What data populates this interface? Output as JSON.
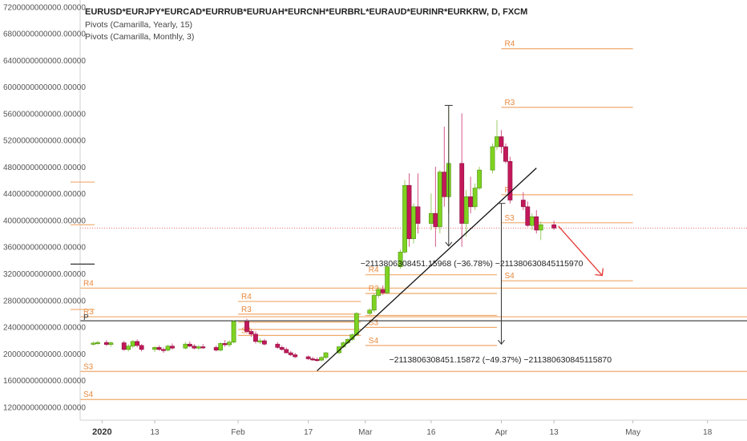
{
  "header": {
    "symbol": "EURUSD*EURJPY*EURCAD*EURRUB*EURUAH*EURCNH*EURBRL*EURAUD*EURINR*EURKRW, D, FXCM",
    "indicators": [
      "Pivots (Camarilla, Yearly, 15)",
      "Pivots (Camarilla, Monthly, 3)"
    ]
  },
  "colors": {
    "up": "#7ed321",
    "down": "#c2185b",
    "pivot": "#f0a96b",
    "pivot_text": "#e8893c",
    "arrow": "#e53935",
    "price_line": "#e57373",
    "axis_text": "#555555"
  },
  "chart_data": {
    "type": "candlestick",
    "y_axis": {
      "range": [
        1000000000000,
        7300000000000
      ],
      "ticks": [
        1200000000000,
        1600000000000,
        2000000000000,
        2400000000000,
        2800000000000,
        3200000000000,
        3600000000000,
        4000000000000,
        4400000000000,
        4800000000000,
        5200000000000,
        5600000000000,
        6000000000000,
        6400000000000,
        6800000000000,
        7200000000000
      ],
      "tick_labels": [
        "1200000000000.00000",
        "1600000000000.00000",
        "2000000000000.00000",
        "2400000000000.00000",
        "2800000000000.00000",
        "3200000000000.00000",
        "3600000000000.00000",
        "4000000000000.00000",
        "4400000000000.00000",
        "4800000000000.00000",
        "5200000000000.00000",
        "5600000000000.00000",
        "6000000000000.00000",
        "6400000000000.00000",
        "6800000000000.00000",
        "7200000000000.00000"
      ]
    },
    "x_axis": {
      "start_date": "2019-12-27",
      "end_date": "2020-05-27",
      "ticks": [
        {
          "date": "2020-01-01",
          "label": "2020",
          "bold": true
        },
        {
          "date": "2020-01-13",
          "label": "13"
        },
        {
          "date": "2020-02-01",
          "label": "Feb"
        },
        {
          "date": "2020-02-17",
          "label": "17"
        },
        {
          "date": "2020-03-01",
          "label": "Mar"
        },
        {
          "date": "2020-03-16",
          "label": "16"
        },
        {
          "date": "2020-04-01",
          "label": "Apr"
        },
        {
          "date": "2020-04-13",
          "label": "13"
        },
        {
          "date": "2020-05-01",
          "label": "May"
        },
        {
          "date": "2020-05-18",
          "label": "18"
        }
      ]
    },
    "candles": [
      {
        "date": "2019-12-30",
        "open": 2150000000000,
        "high": 2180000000000,
        "low": 2120000000000,
        "close": 2155000000000
      },
      {
        "date": "2019-12-31",
        "open": 2155000000000,
        "high": 2190000000000,
        "low": 2130000000000,
        "close": 2165000000000
      },
      {
        "date": "2020-01-02",
        "open": 2165000000000,
        "high": 2200000000000,
        "low": 2110000000000,
        "close": 2135000000000
      },
      {
        "date": "2020-01-03",
        "open": 2135000000000,
        "high": 2180000000000,
        "low": 2100000000000,
        "close": 2160000000000
      },
      {
        "date": "2020-01-06",
        "open": 2160000000000,
        "high": 2190000000000,
        "low": 2040000000000,
        "close": 2060000000000
      },
      {
        "date": "2020-01-07",
        "open": 2060000000000,
        "high": 2140000000000,
        "low": 2030000000000,
        "close": 2110000000000
      },
      {
        "date": "2020-01-08",
        "open": 2110000000000,
        "high": 2200000000000,
        "low": 2080000000000,
        "close": 2180000000000
      },
      {
        "date": "2020-01-09",
        "open": 2180000000000,
        "high": 2210000000000,
        "low": 2090000000000,
        "close": 2120000000000
      },
      {
        "date": "2020-01-10",
        "open": 2120000000000,
        "high": 2140000000000,
        "low": 2030000000000,
        "close": 2060000000000
      },
      {
        "date": "2020-01-13",
        "open": 2060000000000,
        "high": 2110000000000,
        "low": 2020000000000,
        "close": 2090000000000
      },
      {
        "date": "2020-01-14",
        "open": 2090000000000,
        "high": 2120000000000,
        "low": 2040000000000,
        "close": 2060000000000
      },
      {
        "date": "2020-01-15",
        "open": 2060000000000,
        "high": 2090000000000,
        "low": 2010000000000,
        "close": 2050000000000
      },
      {
        "date": "2020-01-16",
        "open": 2050000000000,
        "high": 2130000000000,
        "low": 2030000000000,
        "close": 2110000000000
      },
      {
        "date": "2020-01-17",
        "open": 2110000000000,
        "high": 2150000000000,
        "low": 2060000000000,
        "close": 2080000000000
      },
      {
        "date": "2020-01-20",
        "open": 2080000000000,
        "high": 2170000000000,
        "low": 2060000000000,
        "close": 2140000000000
      },
      {
        "date": "2020-01-21",
        "open": 2140000000000,
        "high": 2180000000000,
        "low": 2090000000000,
        "close": 2110000000000
      },
      {
        "date": "2020-01-22",
        "open": 2110000000000,
        "high": 2140000000000,
        "low": 2060000000000,
        "close": 2080000000000
      },
      {
        "date": "2020-01-23",
        "open": 2080000000000,
        "high": 2130000000000,
        "low": 2050000000000,
        "close": 2100000000000
      },
      {
        "date": "2020-01-24",
        "open": 2100000000000,
        "high": 2140000000000,
        "low": 2070000000000,
        "close": 2090000000000
      },
      {
        "date": "2020-01-27",
        "open": 2090000000000,
        "high": 2120000000000,
        "low": 2030000000000,
        "close": 2050000000000
      },
      {
        "date": "2020-01-28",
        "open": 2050000000000,
        "high": 2170000000000,
        "low": 2030000000000,
        "close": 2150000000000
      },
      {
        "date": "2020-01-29",
        "open": 2150000000000,
        "high": 2200000000000,
        "low": 2100000000000,
        "close": 2130000000000
      },
      {
        "date": "2020-01-30",
        "open": 2130000000000,
        "high": 2200000000000,
        "low": 2100000000000,
        "close": 2170000000000
      },
      {
        "date": "2020-01-31",
        "open": 2170000000000,
        "high": 2500000000000,
        "low": 2150000000000,
        "close": 2480000000000
      },
      {
        "date": "2020-02-03",
        "open": 2480000000000,
        "high": 2520000000000,
        "low": 2300000000000,
        "close": 2330000000000
      },
      {
        "date": "2020-02-04",
        "open": 2330000000000,
        "high": 2370000000000,
        "low": 2250000000000,
        "close": 2290000000000
      },
      {
        "date": "2020-02-05",
        "open": 2290000000000,
        "high": 2330000000000,
        "low": 2150000000000,
        "close": 2180000000000
      },
      {
        "date": "2020-02-06",
        "open": 2180000000000,
        "high": 2230000000000,
        "low": 2140000000000,
        "close": 2190000000000
      },
      {
        "date": "2020-02-07",
        "open": 2190000000000,
        "high": 2220000000000,
        "low": 2120000000000,
        "close": 2140000000000
      },
      {
        "date": "2020-02-10",
        "open": 2140000000000,
        "high": 2170000000000,
        "low": 2070000000000,
        "close": 2090000000000
      },
      {
        "date": "2020-02-11",
        "open": 2090000000000,
        "high": 2120000000000,
        "low": 2040000000000,
        "close": 2060000000000
      },
      {
        "date": "2020-02-12",
        "open": 2060000000000,
        "high": 2090000000000,
        "low": 2000000000000,
        "close": 2010000000000
      },
      {
        "date": "2020-02-13",
        "open": 2010000000000,
        "high": 2040000000000,
        "low": 1960000000000,
        "close": 1980000000000
      },
      {
        "date": "2020-02-14",
        "open": 1980000000000,
        "high": 2010000000000,
        "low": 1930000000000,
        "close": 1950000000000
      },
      {
        "date": "2020-02-17",
        "open": 1950000000000,
        "high": 1970000000000,
        "low": 1900000000000,
        "close": 1920000000000
      },
      {
        "date": "2020-02-18",
        "open": 1920000000000,
        "high": 1950000000000,
        "low": 1890000000000,
        "close": 1910000000000
      },
      {
        "date": "2020-02-19",
        "open": 1910000000000,
        "high": 1940000000000,
        "low": 1880000000000,
        "close": 1900000000000
      },
      {
        "date": "2020-02-20",
        "open": 1900000000000,
        "high": 1960000000000,
        "low": 1880000000000,
        "close": 1940000000000
      },
      {
        "date": "2020-02-21",
        "open": 1940000000000,
        "high": 2020000000000,
        "low": 1920000000000,
        "close": 2010000000000
      },
      {
        "date": "2020-02-24",
        "open": 2010000000000,
        "high": 2110000000000,
        "low": 1990000000000,
        "close": 2100000000000
      },
      {
        "date": "2020-02-25",
        "open": 2100000000000,
        "high": 2180000000000,
        "low": 2080000000000,
        "close": 2160000000000
      },
      {
        "date": "2020-02-26",
        "open": 2160000000000,
        "high": 2230000000000,
        "low": 2140000000000,
        "close": 2210000000000
      },
      {
        "date": "2020-02-27",
        "open": 2210000000000,
        "high": 2300000000000,
        "low": 2190000000000,
        "close": 2280000000000
      },
      {
        "date": "2020-02-28",
        "open": 2280000000000,
        "high": 2620000000000,
        "low": 2260000000000,
        "close": 2600000000000
      },
      {
        "date": "2020-03-02",
        "open": 2600000000000,
        "high": 2680000000000,
        "low": 2570000000000,
        "close": 2650000000000
      },
      {
        "date": "2020-03-03",
        "open": 2650000000000,
        "high": 2900000000000,
        "low": 2620000000000,
        "close": 2870000000000
      },
      {
        "date": "2020-03-04",
        "open": 2870000000000,
        "high": 2990000000000,
        "low": 2830000000000,
        "close": 2960000000000
      },
      {
        "date": "2020-03-05",
        "open": 2960000000000,
        "high": 3020000000000,
        "low": 2880000000000,
        "close": 2910000000000
      },
      {
        "date": "2020-03-06",
        "open": 2910000000000,
        "high": 3330000000000,
        "low": 2890000000000,
        "close": 3300000000000
      },
      {
        "date": "2020-03-09",
        "open": 3300000000000,
        "high": 3560000000000,
        "low": 3270000000000,
        "close": 3520000000000
      },
      {
        "date": "2020-03-10",
        "open": 3520000000000,
        "high": 4600000000000,
        "low": 3500000000000,
        "close": 4520000000000
      },
      {
        "date": "2020-03-11",
        "open": 4520000000000,
        "high": 4700000000000,
        "low": 3600000000000,
        "close": 3720000000000
      },
      {
        "date": "2020-03-12",
        "open": 3720000000000,
        "high": 4250000000000,
        "low": 3650000000000,
        "close": 4200000000000
      },
      {
        "date": "2020-03-13",
        "open": 4200000000000,
        "high": 4700000000000,
        "low": 3800000000000,
        "close": 3950000000000
      },
      {
        "date": "2020-03-16",
        "open": 3950000000000,
        "high": 4400000000000,
        "low": 3850000000000,
        "close": 4100000000000
      },
      {
        "date": "2020-03-17",
        "open": 4100000000000,
        "high": 4800000000000,
        "low": 3600000000000,
        "close": 3900000000000
      },
      {
        "date": "2020-03-18",
        "open": 3900000000000,
        "high": 4750000000000,
        "low": 3800000000000,
        "close": 4720000000000
      },
      {
        "date": "2020-03-19",
        "open": 4720000000000,
        "high": 5400000000000,
        "low": 4200000000000,
        "close": 4350000000000
      },
      {
        "date": "2020-03-20",
        "open": 4350000000000,
        "high": 5700000000000,
        "low": 4100000000000,
        "close": 4850000000000
      },
      {
        "date": "2020-03-23",
        "open": 4850000000000,
        "high": 5600000000000,
        "low": 3600000000000,
        "close": 3950000000000
      },
      {
        "date": "2020-03-24",
        "open": 3950000000000,
        "high": 4450000000000,
        "low": 3750000000000,
        "close": 4350000000000
      },
      {
        "date": "2020-03-25",
        "open": 4350000000000,
        "high": 4650000000000,
        "low": 4100000000000,
        "close": 4200000000000
      },
      {
        "date": "2020-03-26",
        "open": 4200000000000,
        "high": 4550000000000,
        "low": 4150000000000,
        "close": 4480000000000
      },
      {
        "date": "2020-03-27",
        "open": 4480000000000,
        "high": 4800000000000,
        "low": 4450000000000,
        "close": 4750000000000
      },
      {
        "date": "2020-03-30",
        "open": 4750000000000,
        "high": 5150000000000,
        "low": 4700000000000,
        "close": 5100000000000
      },
      {
        "date": "2020-03-31",
        "open": 5100000000000,
        "high": 5500000000000,
        "low": 5050000000000,
        "close": 5250000000000
      },
      {
        "date": "2020-04-01",
        "open": 5250000000000,
        "high": 5350000000000,
        "low": 5000000000000,
        "close": 5100000000000
      },
      {
        "date": "2020-04-02",
        "open": 5100000000000,
        "high": 5150000000000,
        "low": 4850000000000,
        "close": 4880000000000
      },
      {
        "date": "2020-04-03",
        "open": 4880000000000,
        "high": 4950000000000,
        "low": 4250000000000,
        "close": 4300000000000
      },
      {
        "date": "2020-04-06",
        "open": 4300000000000,
        "high": 4420000000000,
        "low": 4150000000000,
        "close": 4200000000000
      },
      {
        "date": "2020-04-07",
        "open": 4200000000000,
        "high": 4280000000000,
        "low": 3900000000000,
        "close": 3920000000000
      },
      {
        "date": "2020-04-08",
        "open": 3920000000000,
        "high": 4100000000000,
        "low": 3850000000000,
        "close": 4050000000000
      },
      {
        "date": "2020-04-09",
        "open": 4050000000000,
        "high": 4150000000000,
        "low": 3800000000000,
        "close": 3850000000000
      },
      {
        "date": "2020-04-10",
        "open": 3850000000000,
        "high": 3980000000000,
        "low": 3700000000000,
        "close": 3930000000000
      },
      {
        "date": "2020-04-13",
        "open": 3930000000000,
        "high": 3990000000000,
        "low": 3850000000000,
        "close": 3880000000000
      }
    ],
    "current_price": 3880000000000,
    "pivot_levels": [
      {
        "label": "R4",
        "value": 2980000000000,
        "start": "2019-12-27",
        "end": "2020-05-27",
        "pos": "start"
      },
      {
        "label": "R3",
        "value": 2550000000000,
        "start": "2019-12-27",
        "end": "2020-05-27",
        "pos": "start"
      },
      {
        "label": "S3",
        "value": 1730000000000,
        "start": "2019-12-27",
        "end": "2020-05-27",
        "pos": "start"
      },
      {
        "label": "S4",
        "value": 1310000000000,
        "start": "2019-12-27",
        "end": "2020-05-27",
        "pos": "start"
      },
      {
        "label": "R4",
        "value": 2780000000000,
        "start": "2020-02-01",
        "end": "2020-02-29",
        "pos": "start"
      },
      {
        "label": "R3",
        "value": 2590000000000,
        "start": "2020-02-01",
        "end": "2020-02-29",
        "pos": "start"
      },
      {
        "label": "S4",
        "value": 2270000000000,
        "start": "2020-02-01",
        "end": "2020-02-29",
        "pos": "start"
      },
      {
        "label": "",
        "value": 2470000000000,
        "start": "2020-02-01",
        "end": "2020-02-29",
        "pos": "start"
      },
      {
        "label": "",
        "value": 2360000000000,
        "start": "2020-02-01",
        "end": "2020-02-29",
        "pos": "start"
      },
      {
        "label": "R4",
        "value": 3180000000000,
        "start": "2020-03-01",
        "end": "2020-03-31",
        "pos": "start"
      },
      {
        "label": "R3",
        "value": 2900000000000,
        "start": "2020-03-01",
        "end": "2020-03-31",
        "pos": "start"
      },
      {
        "label": "",
        "value": 2570000000000,
        "start": "2020-03-01",
        "end": "2020-03-31",
        "pos": "start"
      },
      {
        "label": "S3",
        "value": 2390000000000,
        "start": "2020-03-01",
        "end": "2020-03-31",
        "pos": "start"
      },
      {
        "label": "S4",
        "value": 2120000000000,
        "start": "2020-03-01",
        "end": "2020-03-31",
        "pos": "start"
      },
      {
        "label": "R4",
        "value": 6570000000000,
        "start": "2020-04-01",
        "end": "2020-05-01",
        "pos": "start"
      },
      {
        "label": "R3",
        "value": 5690000000000,
        "start": "2020-04-01",
        "end": "2020-05-01",
        "pos": "start"
      },
      {
        "label": "P",
        "value": 4380000000000,
        "start": "2020-04-01",
        "end": "2020-05-01",
        "pos": "start"
      },
      {
        "label": "S3",
        "value": 3960000000000,
        "start": "2020-04-01",
        "end": "2020-05-01",
        "pos": "start"
      },
      {
        "label": "S4",
        "value": 3090000000000,
        "start": "2020-04-01",
        "end": "2020-05-01",
        "pos": "start"
      }
    ],
    "pivot_p_level": {
      "label": "P",
      "value": 2490000000000
    },
    "measurements": [
      {
        "date": "2020-03-20",
        "from": 5720000000000,
        "to": 3610000000000,
        "label": "−2113806308451.15968 (−36.78%) −2113806308451159​70"
      },
      {
        "date": "2020-04-01",
        "from": 4250000000000,
        "to": 2140000000000,
        "label": "−2113806308451.15872 (−49.37%) −2113806308451158​70"
      }
    ],
    "trendline": {
      "x1": "2020-02-19",
      "y1": 1740000000000,
      "x2": "2020-04-09",
      "y2": 4780000000000
    },
    "projection_arrow": {
      "x1": "2020-04-14",
      "y1": 3910000000000,
      "x2": "2020-04-24",
      "y2": 3170000000000
    },
    "left_axis_marks": [
      {
        "value": 4570000000000,
        "color": "#f0a96b"
      },
      {
        "value": 3930000000000,
        "color": "#f0a96b"
      },
      {
        "value": 3340000000000,
        "color": "#333333"
      },
      {
        "value": 2660000000000,
        "color": "#f0a96b"
      }
    ]
  }
}
